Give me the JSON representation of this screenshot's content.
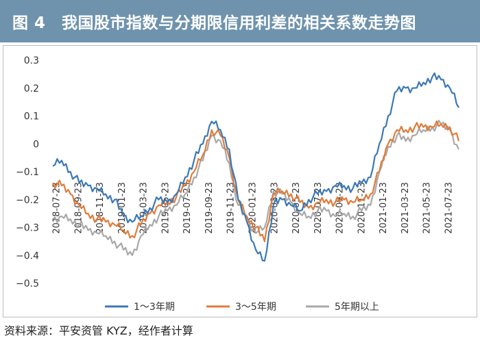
{
  "header": {
    "title": "图 4　我国股市指数与分期限信用利差的相关系数走势图"
  },
  "footer": {
    "source": "资料来源：平安资管 KYZ，经作者计算"
  },
  "colors": {
    "header_bg": "#6f93ad",
    "series1": "#3b78b4",
    "series2": "#e07b39",
    "series3": "#a8a8a8"
  },
  "chart_data": {
    "type": "line",
    "title": "",
    "xlabel": "",
    "ylabel": "",
    "ylim": [
      -0.5,
      0.3
    ],
    "yticks": [
      "0.3",
      "0.2",
      "0.1",
      "0",
      "−0.1",
      "−0.2",
      "−0.3",
      "−0.4",
      "−0.5"
    ],
    "xticks": [
      "2018-07-23",
      "2018-09-23",
      "2018-11-23",
      "2019-01-23",
      "2019-03-23",
      "2019-05-23",
      "2019-07-23",
      "2019-09-23",
      "2019-11-23",
      "2020-01-23",
      "2020-03-23",
      "2020-05-23",
      "2020-07-23",
      "2020-09-23",
      "2020-11-23",
      "2021-01-23",
      "2021-03-23",
      "2021-05-23",
      "2021-07-23"
    ],
    "legend": [
      "1～3年期",
      "3～5年期",
      "5年期以上"
    ],
    "legend_position": "bottom",
    "grid": false,
    "series": [
      {
        "name": "1～3年期",
        "values": [
          -0.08,
          -0.06,
          -0.1,
          -0.14,
          -0.15,
          -0.16,
          -0.18,
          -0.2,
          -0.26,
          -0.28,
          -0.26,
          -0.23,
          -0.2,
          -0.21,
          -0.18,
          -0.12,
          -0.06,
          0.0,
          0.08,
          0.05,
          -0.02,
          -0.2,
          -0.28,
          -0.38,
          -0.42,
          -0.22,
          -0.2,
          -0.22,
          -0.24,
          -0.2,
          -0.18,
          -0.17,
          -0.15,
          -0.15,
          -0.16,
          -0.14,
          -0.12,
          0.0,
          0.1,
          0.19,
          0.2,
          0.2,
          0.22,
          0.24,
          0.23,
          0.2,
          0.13
        ]
      },
      {
        "name": "3～5年期",
        "values": [
          -0.14,
          -0.15,
          -0.18,
          -0.22,
          -0.25,
          -0.27,
          -0.28,
          -0.29,
          -0.31,
          -0.33,
          -0.29,
          -0.25,
          -0.22,
          -0.21,
          -0.19,
          -0.15,
          -0.1,
          -0.04,
          0.05,
          0.03,
          -0.05,
          -0.2,
          -0.26,
          -0.3,
          -0.35,
          -0.18,
          -0.17,
          -0.18,
          -0.21,
          -0.23,
          -0.21,
          -0.2,
          -0.21,
          -0.2,
          -0.21,
          -0.2,
          -0.18,
          -0.1,
          0.0,
          0.05,
          0.05,
          0.06,
          0.06,
          0.06,
          0.07,
          0.06,
          0.01
        ]
      },
      {
        "name": "5年期以上",
        "values": [
          -0.27,
          -0.26,
          -0.27,
          -0.29,
          -0.31,
          -0.32,
          -0.33,
          -0.35,
          -0.38,
          -0.4,
          -0.33,
          -0.29,
          -0.26,
          -0.24,
          -0.22,
          -0.18,
          -0.12,
          -0.06,
          0.03,
          0.01,
          -0.07,
          -0.22,
          -0.28,
          -0.32,
          -0.3,
          -0.17,
          -0.18,
          -0.21,
          -0.25,
          -0.26,
          -0.24,
          -0.24,
          -0.26,
          -0.25,
          -0.26,
          -0.24,
          -0.22,
          -0.1,
          -0.01,
          0.03,
          0.01,
          0.03,
          0.05,
          0.06,
          0.07,
          0.05,
          -0.02
        ]
      }
    ]
  }
}
